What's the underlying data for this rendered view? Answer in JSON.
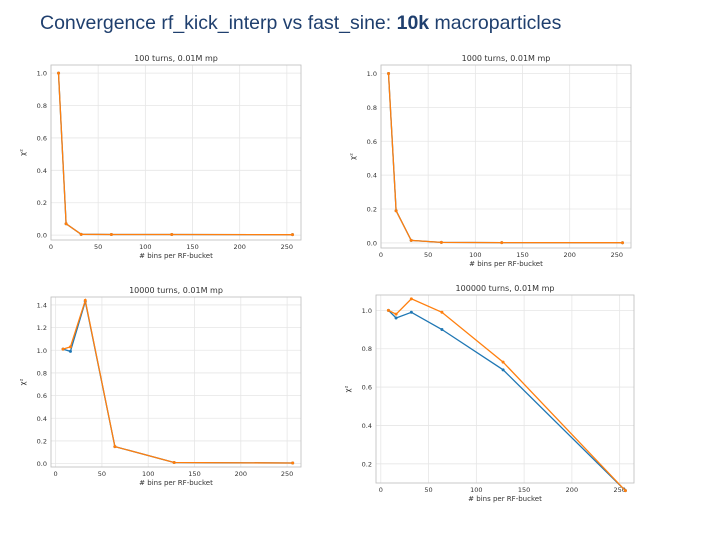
{
  "slide": {
    "title_prefix": "Convergence rf_kick_interp vs fast_sine: ",
    "title_bold": "10k",
    "title_suffix": " macroparticles"
  },
  "colors": {
    "series_blue": "#1f77b4",
    "series_orange": "#ff7f0e",
    "grid": "#e6e6e6"
  },
  "chart_data": [
    {
      "type": "line",
      "title": "100 turns, 0.01M mp",
      "xlabel": "# bins per RF-bucket",
      "ylabel": "χ²",
      "xlim": [
        0,
        265
      ],
      "ylim": [
        -0.03,
        1.05
      ],
      "xticks": [
        0,
        50,
        100,
        150,
        200,
        250
      ],
      "yticks": [
        0.0,
        0.2,
        0.4,
        0.6,
        0.8,
        1.0
      ],
      "grid": true,
      "series": [
        {
          "color": "#1f77b4",
          "x": [
            8,
            16,
            32,
            64,
            128,
            256
          ],
          "y": [
            1.0,
            0.07,
            0.005,
            0.004,
            0.004,
            0.003
          ]
        },
        {
          "color": "#ff7f0e",
          "x": [
            8,
            16,
            32,
            64,
            128,
            256
          ],
          "y": [
            1.0,
            0.07,
            0.005,
            0.004,
            0.004,
            0.003
          ]
        }
      ]
    },
    {
      "type": "line",
      "title": "1000 turns, 0.01M mp",
      "xlabel": "# bins per RF-bucket",
      "ylabel": "χ²",
      "xlim": [
        0,
        265
      ],
      "ylim": [
        -0.03,
        1.05
      ],
      "xticks": [
        0,
        50,
        100,
        150,
        200,
        250
      ],
      "yticks": [
        0.0,
        0.2,
        0.4,
        0.6,
        0.8,
        1.0
      ],
      "grid": true,
      "series": [
        {
          "color": "#1f77b4",
          "x": [
            8,
            16,
            32,
            64,
            128,
            256
          ],
          "y": [
            1.0,
            0.19,
            0.015,
            0.003,
            0.002,
            0.001
          ]
        },
        {
          "color": "#ff7f0e",
          "x": [
            8,
            16,
            32,
            64,
            128,
            256
          ],
          "y": [
            1.0,
            0.19,
            0.015,
            0.003,
            0.002,
            0.001
          ]
        }
      ]
    },
    {
      "type": "line",
      "title": "10000 turns, 0.01M mp",
      "xlabel": "# bins per RF-bucket",
      "ylabel": "χ²",
      "xlim": [
        -5,
        265
      ],
      "ylim": [
        -0.03,
        1.47
      ],
      "xticks": [
        0,
        50,
        100,
        150,
        200,
        250
      ],
      "yticks": [
        0.0,
        0.2,
        0.4,
        0.6,
        0.8,
        1.0,
        1.2,
        1.4
      ],
      "grid": true,
      "series": [
        {
          "color": "#1f77b4",
          "x": [
            8,
            16,
            32,
            64,
            128,
            256
          ],
          "y": [
            1.01,
            0.99,
            1.43,
            0.15,
            0.01,
            0.005
          ]
        },
        {
          "color": "#ff7f0e",
          "x": [
            8,
            16,
            32,
            64,
            128,
            256
          ],
          "y": [
            1.01,
            1.03,
            1.44,
            0.15,
            0.01,
            0.005
          ]
        }
      ]
    },
    {
      "type": "line",
      "title": "100000 turns, 0.01M mp",
      "xlabel": "# bins per RF-bucket",
      "ylabel": "χ²",
      "xlim": [
        -5,
        265
      ],
      "ylim": [
        0.1,
        1.08
      ],
      "xticks": [
        0,
        50,
        100,
        150,
        200,
        250
      ],
      "yticks": [
        0.2,
        0.4,
        0.6,
        0.8,
        1.0
      ],
      "grid": true,
      "series": [
        {
          "color": "#1f77b4",
          "x": [
            8,
            16,
            32,
            64,
            128,
            256
          ],
          "y": [
            1.0,
            0.96,
            0.99,
            0.9,
            0.69,
            0.06
          ]
        },
        {
          "color": "#ff7f0e",
          "x": [
            8,
            16,
            32,
            64,
            128,
            256
          ],
          "y": [
            1.0,
            0.98,
            1.06,
            0.99,
            0.73,
            0.06
          ]
        }
      ]
    }
  ]
}
